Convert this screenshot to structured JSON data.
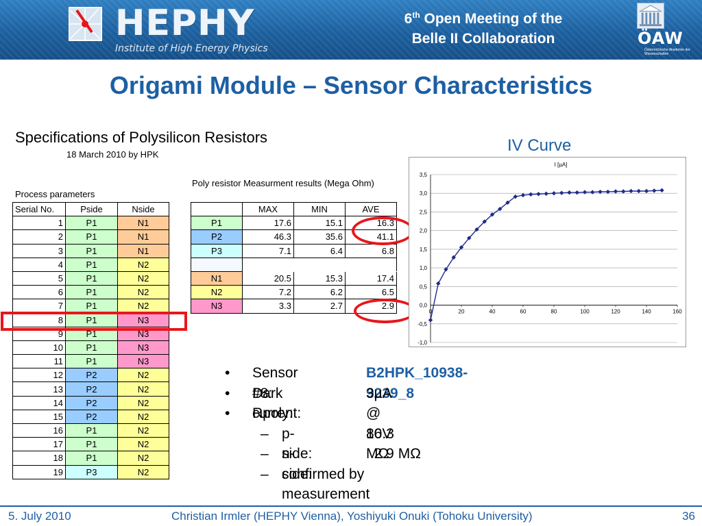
{
  "header": {
    "logo_text": "HEPHY",
    "logo_subtitle": "Institute of High Energy Physics",
    "meeting_line1_number": "6",
    "meeting_line1_sup": "th",
    "meeting_line1_rest": " Open Meeting of the",
    "meeting_line2": "Belle II Collaboration",
    "oaw_text": "ÖAW",
    "oaw_subtitle": "Österreichische Akademie der Wissenschaften"
  },
  "slide": {
    "title": "Origami Module – Sensor Characteristics"
  },
  "specs": {
    "title": "Specifications of Polysilicon Resistors",
    "date": "18 March 2010 by HPK",
    "process_label": "Process parameters",
    "poly_label": "Poly resistor Measurment results (Mega Ohm)"
  },
  "process_table": {
    "headers": [
      "Serial No.",
      "Pside",
      "Nside"
    ],
    "rows": [
      {
        "serial": "1",
        "pside": "P1",
        "nside": "N1"
      },
      {
        "serial": "2",
        "pside": "P1",
        "nside": "N1"
      },
      {
        "serial": "3",
        "pside": "P1",
        "nside": "N1"
      },
      {
        "serial": "4",
        "pside": "P1",
        "nside": "N2"
      },
      {
        "serial": "5",
        "pside": "P1",
        "nside": "N2"
      },
      {
        "serial": "6",
        "pside": "P1",
        "nside": "N2"
      },
      {
        "serial": "7",
        "pside": "P1",
        "nside": "N2"
      },
      {
        "serial": "8",
        "pside": "P1",
        "nside": "N3"
      },
      {
        "serial": "9",
        "pside": "P1",
        "nside": "N3"
      },
      {
        "serial": "10",
        "pside": "P1",
        "nside": "N3"
      },
      {
        "serial": "11",
        "pside": "P1",
        "nside": "N3"
      },
      {
        "serial": "12",
        "pside": "P2",
        "nside": "N2"
      },
      {
        "serial": "13",
        "pside": "P2",
        "nside": "N2"
      },
      {
        "serial": "14",
        "pside": "P2",
        "nside": "N2"
      },
      {
        "serial": "15",
        "pside": "P2",
        "nside": "N2"
      },
      {
        "serial": "16",
        "pside": "P1",
        "nside": "N2"
      },
      {
        "serial": "17",
        "pside": "P1",
        "nside": "N2"
      },
      {
        "serial": "18",
        "pside": "P1",
        "nside": "N2"
      },
      {
        "serial": "19",
        "pside": "P3",
        "nside": "N2"
      }
    ]
  },
  "poly_table": {
    "headers": [
      "",
      "MAX",
      "MIN",
      "AVE"
    ],
    "rows": [
      {
        "name": "P1",
        "max": "17.6",
        "min": "15.1",
        "ave": "16.3"
      },
      {
        "name": "P2",
        "max": "46.3",
        "min": "35.6",
        "ave": "41.1"
      },
      {
        "name": "P3",
        "max": "7.1",
        "min": "6.4",
        "ave": "6.8"
      },
      {
        "name": "",
        "max": "",
        "min": "",
        "ave": ""
      },
      {
        "name": "N1",
        "max": "20.5",
        "min": "15.3",
        "ave": "17.4"
      },
      {
        "name": "N2",
        "max": "7.2",
        "min": "6.2",
        "ave": "6.5"
      },
      {
        "name": "N3",
        "max": "3.3",
        "min": "2.7",
        "ave": "2.9"
      }
    ]
  },
  "colors": {
    "P1": "#ccffcc",
    "P2": "#99ccff",
    "P3": "#ccffff",
    "N1": "#ffcc99",
    "N2": "#ffff99",
    "N3": "#ff99cc",
    "accent": "#1d5fa4",
    "highlight": "#e8161b",
    "series": "#1f2a8c"
  },
  "iv_title": "IV Curve",
  "chart_data": {
    "type": "line",
    "title": "I [µA]",
    "xlabel": "",
    "ylabel": "",
    "xlim": [
      0,
      160
    ],
    "ylim": [
      -1.0,
      3.5
    ],
    "x_ticks": [
      "0",
      "20",
      "40",
      "60",
      "80",
      "100",
      "120",
      "140",
      "160"
    ],
    "y_ticks": [
      "3,5",
      "3,0",
      "2,5",
      "2,0",
      "1,5",
      "1,0",
      "0,5",
      "0,0",
      "-0,5",
      "-1,0"
    ],
    "grid": true,
    "legend": "none",
    "series": [
      {
        "x": [
          0,
          5,
          10,
          15,
          20,
          25,
          30,
          35,
          40,
          45,
          50,
          55,
          60,
          65,
          70,
          75,
          80,
          85,
          90,
          95,
          100,
          105,
          110,
          115,
          120,
          125,
          130,
          135,
          140,
          145,
          150
        ],
        "y": [
          -0.4,
          0.58,
          0.96,
          1.28,
          1.55,
          1.8,
          2.03,
          2.24,
          2.43,
          2.58,
          2.75,
          2.91,
          2.95,
          2.97,
          2.98,
          2.99,
          3.0,
          3.01,
          3.02,
          3.02,
          3.03,
          3.03,
          3.04,
          3.04,
          3.05,
          3.05,
          3.06,
          3.06,
          3.06,
          3.07,
          3.08
        ]
      }
    ]
  },
  "bullets": {
    "sensor_label": "Sensor #8:",
    "sensor_value": "B2HPK_10938-9239_8",
    "dark_label": "Dark current:",
    "dark_value": "3µA @ 80V",
    "rpoly_label": "Rpoly:",
    "pside_label": "p-side:",
    "pside_value": "16.3 MΩ",
    "nside_label": "n-side:",
    "nside_value": "  2.9 MΩ",
    "confirmed": "confirmed by measurement",
    "dot": "•",
    "dash": "–"
  },
  "footer": {
    "date": "5. July 2010",
    "authors": "Christian Irmler (HEPHY Vienna), Yoshiyuki Onuki (Tohoku University)",
    "page": "36"
  }
}
